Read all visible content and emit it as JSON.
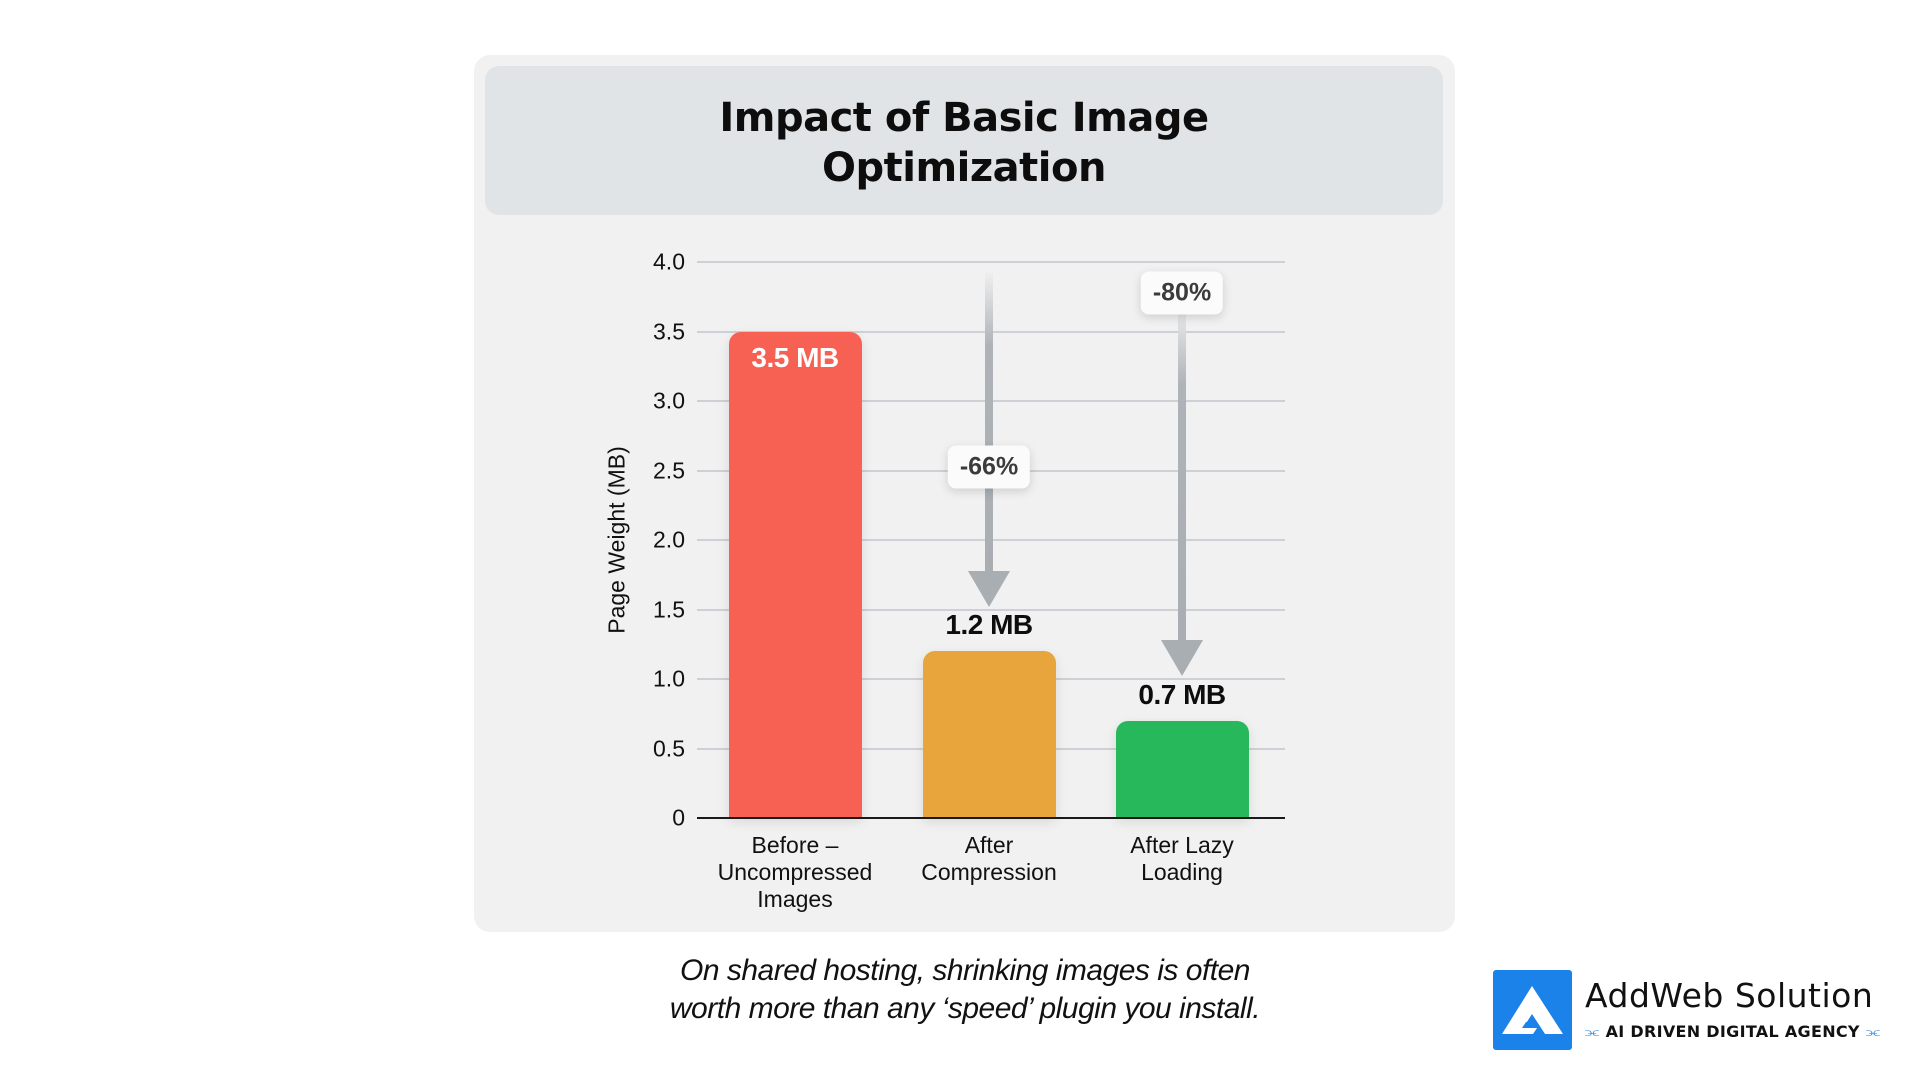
{
  "title": "Impact of Basic Image Optimization",
  "caption_lines": [
    "On shared hosting, shrinking images is often",
    "worth more than any ‘speed’ plugin you install."
  ],
  "logo": {
    "name": "AddWeb Solution",
    "tagline": "AI DRIVEN DIGITAL AGENCY",
    "left_glyph": "⫘",
    "right_glyph": "⫘",
    "color": "#1a82e8"
  },
  "chart_data": {
    "type": "bar",
    "title": "Impact of Basic Image Optimization",
    "xlabel": "",
    "ylabel": "Page Weight (MB)",
    "ylim": [
      0,
      4.0
    ],
    "yticks": [
      "0",
      "0.5",
      "1.0",
      "1.5",
      "2.0",
      "2.5",
      "3.0",
      "3.5",
      "4.0"
    ],
    "grid": true,
    "legend": "none",
    "categories": [
      "Before – Uncompressed Images",
      "After Compression",
      "After Lazy Loading"
    ],
    "category_lines": [
      [
        "Before –",
        "Uncompressed",
        "Images"
      ],
      [
        "After",
        "Compression"
      ],
      [
        "After Lazy",
        "Loading"
      ]
    ],
    "values": [
      3.5,
      1.2,
      0.7
    ],
    "value_labels": [
      "3.5 MB",
      "1.2 MB",
      "0.7 MB"
    ],
    "colors": [
      "#f76153",
      "#e8a53c",
      "#28b85c"
    ],
    "annotations": [
      {
        "text": "-66%",
        "target": "After Compression"
      },
      {
        "text": "-80%",
        "target": "After Lazy Loading"
      }
    ]
  }
}
